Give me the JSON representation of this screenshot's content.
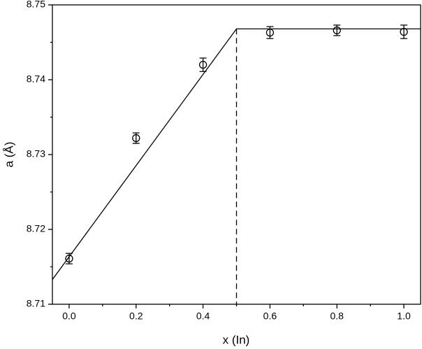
{
  "chart_data": {
    "type": "scatter",
    "xlabel": "x (In)",
    "ylabel": "a (Å)",
    "xlim": [
      -0.05,
      1.05
    ],
    "ylim": [
      8.71,
      8.75
    ],
    "xticks": [
      {
        "value": 0,
        "label": "0.0"
      },
      0.2,
      0.4,
      0.6,
      0.8,
      {
        "value": 1,
        "label": "1.0"
      }
    ],
    "yticks": [
      8.71,
      8.72,
      8.73,
      8.74,
      8.75
    ],
    "color": "#000000",
    "points": {
      "x": [
        0,
        0.2,
        0.4,
        0.6,
        0.8,
        1.0
      ],
      "values": [
        8.7161,
        8.7322,
        8.742,
        8.7463,
        8.7466,
        8.7464
      ],
      "errors": [
        0.0007,
        0.0007,
        0.0009,
        0.0008,
        0.0007,
        0.0009
      ]
    },
    "fit": {
      "x": [
        -0.05,
        0.5,
        1.05
      ],
      "values": [
        8.7133,
        8.7468,
        8.7468
      ]
    }
  }
}
